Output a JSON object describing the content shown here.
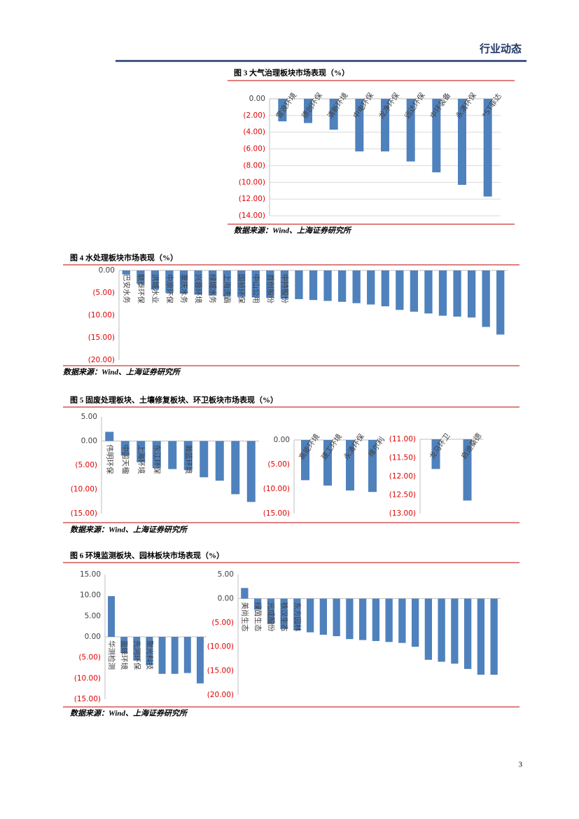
{
  "header": {
    "title": "行业动态"
  },
  "page_number": "3",
  "figures": [
    {
      "title": "图 3 大气治理板块市场表现（%）",
      "source": "数据来源：Wind、上海证券研究所"
    },
    {
      "title": "图 4  水处理板块市场表现（%）",
      "source": "数据来源：Wind、上海证券研究所"
    },
    {
      "title": "图 5 固废处理板块、土壤修复板块、环卫板块市场表现（%）",
      "source": "数据来源：Wind、上海证券研究所"
    },
    {
      "title": "图 6 环境监测板块、园林板块市场表现（%）",
      "source": "数据来源：Wind、上海证券研究所"
    }
  ],
  "chart_data": [
    {
      "type": "bar",
      "color": "#4f81bd",
      "grid": true,
      "negative_tick_color": "#e00000",
      "categories": [
        "雪浪环境",
        "德创环保",
        "清新环境",
        "中电环保",
        "龙净环保",
        "远达环保",
        "中环装备",
        "永清环保",
        "*ST菲达"
      ],
      "values": [
        -2.7,
        -2.9,
        -3.7,
        -6.3,
        -6.3,
        -7.5,
        -8.8,
        -10.3,
        -11.7
      ],
      "ylim": [
        -14,
        0
      ],
      "yticks": [
        {
          "value": 0,
          "label": "0.00"
        },
        {
          "value": -2,
          "label": "(2.00)"
        },
        {
          "value": -4,
          "label": "(4.00)"
        },
        {
          "value": -6,
          "label": "(6.00)"
        },
        {
          "value": -8,
          "label": "(8.00)"
        },
        {
          "value": -10,
          "label": "(10.00)"
        },
        {
          "value": -12,
          "label": "(12.00)"
        },
        {
          "value": -14,
          "label": "(14.00)"
        }
      ]
    },
    {
      "type": "bar",
      "color": "#4f81bd",
      "grid": false,
      "negative_tick_color": "#e00000",
      "categories": [
        "巴安水务",
        "联泰环保",
        "洪城水业",
        "中原环保",
        "重庆水务",
        "兴蓉环境",
        "绿城水务",
        "上海洗霸",
        "国祯环保",
        "中山公用",
        "首创股份",
        "中持股份",
        null,
        null,
        null,
        null,
        null,
        null,
        null,
        null,
        null,
        null,
        null,
        null,
        null,
        null,
        null
      ],
      "values": [
        -0.9,
        -3.0,
        -4.3,
        -5.0,
        -5.2,
        -5.4,
        -5.6,
        -5.8,
        -5.9,
        -6.0,
        -6.1,
        -6.3,
        -6.4,
        -6.6,
        -6.8,
        -7.0,
        -7.3,
        -7.6,
        -8.0,
        -8.8,
        -9.2,
        -9.6,
        -10.1,
        -10.3,
        -10.5,
        -12.6,
        -14.3
      ],
      "ylim": [
        -20,
        0
      ],
      "yticks": [
        {
          "value": 0,
          "label": "0.00"
        },
        {
          "value": -5,
          "label": "(5.00)"
        },
        {
          "value": -10,
          "label": "(10.00)"
        },
        {
          "value": -15,
          "label": "(15.00)"
        },
        {
          "value": -20,
          "label": "(20.00)"
        }
      ]
    },
    {
      "type": "bar",
      "color": "#4f81bd",
      "grid": false,
      "negative_tick_color": "#e00000",
      "categories": [
        "伟明环保",
        "中国天楹",
        "上海环境",
        "东江环保",
        null,
        "瀚蓝环境",
        null,
        null,
        null,
        null
      ],
      "values": [
        1.9,
        -3.0,
        -4.4,
        -5.6,
        -5.8,
        -6.0,
        -7.5,
        -8.2,
        -11.0,
        -12.6
      ],
      "ylim": [
        -15,
        5
      ],
      "yticks": [
        {
          "value": 5,
          "label": "5.00"
        },
        {
          "value": 0,
          "label": "0.00"
        },
        {
          "value": -5,
          "label": "(5.00)"
        },
        {
          "value": -10,
          "label": "(10.00)"
        },
        {
          "value": -15,
          "label": "(15.00)"
        }
      ]
    },
    {
      "type": "bar",
      "color": "#4f81bd",
      "grid": false,
      "negative_tick_color": "#e00000",
      "categories": [
        "高能环境",
        "建工环境",
        "永清环保",
        "维尔利"
      ],
      "values": [
        -8.2,
        -9.3,
        -10.3,
        -10.6
      ],
      "ylim": [
        -15,
        0
      ],
      "yticks": [
        {
          "value": 0,
          "label": "0.00"
        },
        {
          "value": -5,
          "label": "(5.00)"
        },
        {
          "value": -10,
          "label": "(10.00)"
        },
        {
          "value": -15,
          "label": "(15.00)"
        }
      ]
    },
    {
      "type": "bar",
      "color": "#4f81bd",
      "grid": false,
      "negative_tick_color": "#e00000",
      "categories": [
        "龙马环卫",
        "启迪桑德"
      ],
      "values": [
        -11.8,
        -12.65
      ],
      "ylim": [
        -13,
        -11
      ],
      "yticks": [
        {
          "value": -11,
          "label": "(11.00)"
        },
        {
          "value": -11.5,
          "label": "(11.50)"
        },
        {
          "value": -12,
          "label": "(12.00)"
        },
        {
          "value": -12.5,
          "label": "(12.50)"
        },
        {
          "value": -13,
          "label": "(13.00)"
        }
      ]
    },
    {
      "type": "bar",
      "color": "#4f81bd",
      "grid": false,
      "negative_tick_color": "#e00000",
      "categories": [
        "华测检测",
        "盈峰环境",
        "先河环保",
        "聚光科技",
        null,
        null,
        null,
        null
      ],
      "values": [
        9.8,
        -3.9,
        -5.7,
        -6.8,
        -8.9,
        -8.9,
        -8.7,
        -11.2
      ],
      "ylim": [
        -15,
        15
      ],
      "yticks": [
        {
          "value": 15,
          "label": "15.00"
        },
        {
          "value": 10,
          "label": "10.00"
        },
        {
          "value": 5,
          "label": "5.00"
        },
        {
          "value": 0,
          "label": "0.00"
        },
        {
          "value": -5,
          "label": "(5.00)"
        },
        {
          "value": -10,
          "label": "(10.00)"
        },
        {
          "value": -15,
          "label": "(15.00)"
        }
      ]
    },
    {
      "type": "bar",
      "color": "#4f81bd",
      "grid": false,
      "negative_tick_color": "#e00000",
      "categories": [
        "美尚生态",
        "绿茵生态",
        "元成股份",
        "铁汉生态",
        "东方园林",
        null,
        null,
        null,
        null,
        null,
        null,
        null,
        null,
        null,
        null,
        null,
        null,
        null,
        null,
        null
      ],
      "values": [
        2.2,
        -2.3,
        -5.3,
        -6.3,
        -6.6,
        -7.0,
        -7.5,
        -7.8,
        -8.4,
        -8.6,
        -8.8,
        -9.0,
        -9.2,
        -10.0,
        -12.7,
        -13.1,
        -13.5,
        -14.6,
        -15.8,
        -15.8
      ],
      "ylim": [
        -20,
        5
      ],
      "yticks": [
        {
          "value": 5,
          "label": "5.00"
        },
        {
          "value": 0,
          "label": "0.00"
        },
        {
          "value": -5,
          "label": "(5.00)"
        },
        {
          "value": -10,
          "label": "(10.00)"
        },
        {
          "value": -15,
          "label": "(15.00)"
        },
        {
          "value": -20,
          "label": "(20.00)"
        }
      ]
    }
  ]
}
